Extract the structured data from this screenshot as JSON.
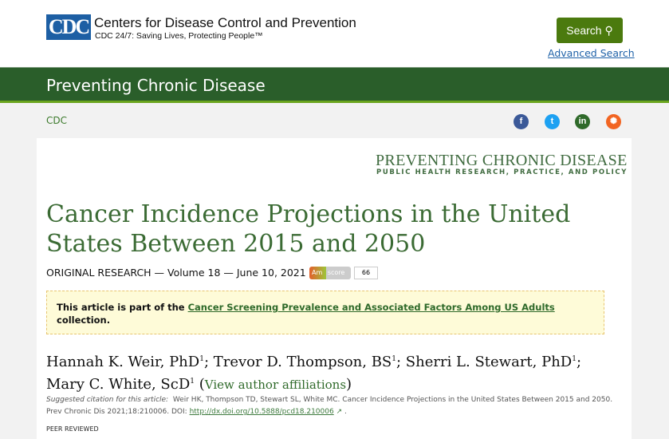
{
  "header": {
    "logo_text": "CDC",
    "org_name": "Centers for Disease Control and Prevention",
    "tagline": "CDC 24/7: Saving Lives, Protecting People™",
    "search_label": "Search",
    "advanced_search": "Advanced Search"
  },
  "band": {
    "title": "Preventing Chronic Disease"
  },
  "breadcrumb": "CDC",
  "social": [
    {
      "icon": "facebook-icon",
      "glyph": "f",
      "color": "#3b5998"
    },
    {
      "icon": "twitter-icon",
      "glyph": "t",
      "color": "#1da1f2"
    },
    {
      "icon": "linkedin-icon",
      "glyph": "in",
      "color": "#2f6a2a"
    },
    {
      "icon": "syndicate-icon",
      "glyph": "✺",
      "color": "#f26522"
    }
  ],
  "journal": {
    "name": "PREVENTING CHRONIC DISEASE",
    "subtitle": "PUBLIC HEALTH RESEARCH, PRACTICE, AND POLICY"
  },
  "article": {
    "title": "Cancer Incidence Projections in the United States Between 2015 and 2050",
    "meta": "ORIGINAL RESEARCH — Volume 18 — June 10, 2021",
    "altmetric": {
      "label": "Am",
      "score_label": "score",
      "score": "66"
    },
    "collection": {
      "prefix": "This article is part of the ",
      "link": "Cancer Screening Prevalence and Associated Factors Among US Adults",
      "suffix": " collection."
    },
    "authors": [
      {
        "name": "Hannah K. Weir, PhD",
        "sup": "1",
        "sep": "; "
      },
      {
        "name": "Trevor D. Thompson, BS",
        "sup": "1",
        "sep": "; "
      },
      {
        "name": "Sherri L. Stewart, PhD",
        "sup": "1",
        "sep": "; "
      },
      {
        "name": "Mary C. White, ScD",
        "sup": "1",
        "sep": " "
      }
    ],
    "affiliations_link": "View author affiliations",
    "citation": {
      "label": "Suggested citation for this article:",
      "text": "Weir HK, Thompson TD, Stewart SL, White MC. Cancer Incidence Projections in the United States Between 2015 and 2050. Prev Chronic Dis 2021;18:210006. DOI: ",
      "doi": "http://dx.doi.org/10.5888/pcd18.210006",
      "end": " ."
    },
    "peer": "PEER REVIEWED"
  }
}
